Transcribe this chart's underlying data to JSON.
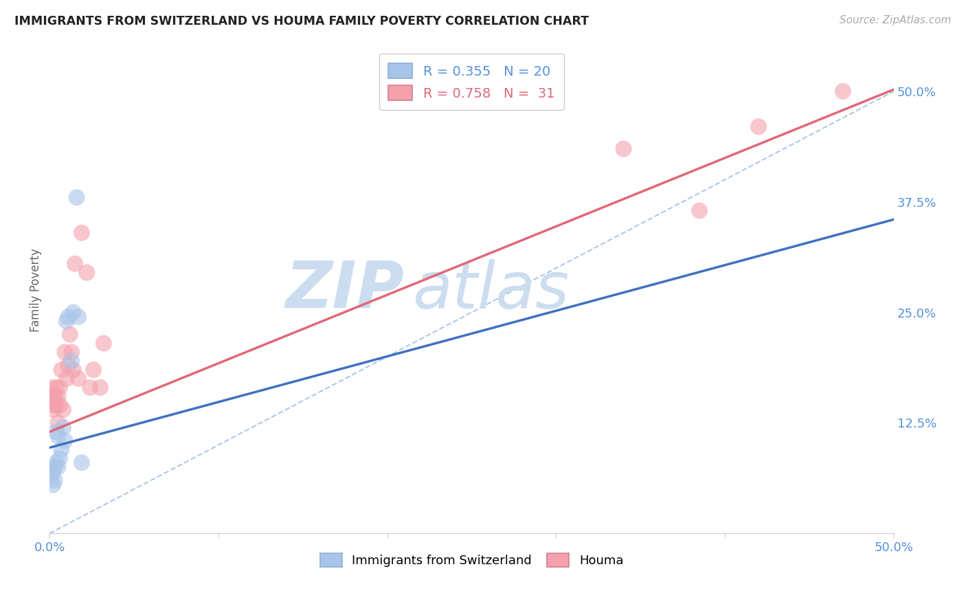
{
  "title": "IMMIGRANTS FROM SWITZERLAND VS HOUMA FAMILY POVERTY CORRELATION CHART",
  "source": "Source: ZipAtlas.com",
  "ylabel": "Family Poverty",
  "right_yticks": [
    "50.0%",
    "37.5%",
    "25.0%",
    "12.5%"
  ],
  "right_ytick_vals": [
    0.5,
    0.375,
    0.25,
    0.125
  ],
  "xlim": [
    0.0,
    0.5
  ],
  "ylim": [
    0.0,
    0.55
  ],
  "blue_label": "Immigrants from Switzerland",
  "pink_label": "Houma",
  "blue_R": "0.355",
  "blue_N": "20",
  "pink_R": "0.758",
  "pink_N": "31",
  "blue_color": "#a8c4e8",
  "pink_color": "#f4a0ad",
  "blue_line_color": "#4070c0",
  "pink_line_color": "#e06878",
  "dashed_line_color": "#b0c8e8",
  "watermark_color": "#ccddf0",
  "blue_scatter_x": [
    0.001,
    0.002,
    0.002,
    0.003,
    0.003,
    0.004,
    0.004,
    0.005,
    0.005,
    0.006,
    0.007,
    0.008,
    0.009,
    0.01,
    0.011,
    0.013,
    0.014,
    0.016,
    0.017,
    0.019
  ],
  "blue_scatter_y": [
    0.065,
    0.07,
    0.055,
    0.075,
    0.06,
    0.08,
    0.115,
    0.075,
    0.11,
    0.085,
    0.095,
    0.12,
    0.105,
    0.24,
    0.245,
    0.195,
    0.25,
    0.38,
    0.245,
    0.08
  ],
  "pink_scatter_x": [
    0.001,
    0.002,
    0.002,
    0.003,
    0.003,
    0.004,
    0.004,
    0.005,
    0.005,
    0.006,
    0.006,
    0.007,
    0.008,
    0.009,
    0.01,
    0.011,
    0.012,
    0.013,
    0.014,
    0.015,
    0.017,
    0.019,
    0.022,
    0.024,
    0.026,
    0.03,
    0.032,
    0.34,
    0.385,
    0.42,
    0.47
  ],
  "pink_scatter_y": [
    0.165,
    0.14,
    0.155,
    0.145,
    0.155,
    0.165,
    0.145,
    0.155,
    0.125,
    0.145,
    0.165,
    0.185,
    0.14,
    0.205,
    0.175,
    0.19,
    0.225,
    0.205,
    0.185,
    0.305,
    0.175,
    0.34,
    0.295,
    0.165,
    0.185,
    0.165,
    0.215,
    0.435,
    0.365,
    0.46,
    0.5
  ],
  "blue_line_x0": 0.0,
  "blue_line_y0": 0.097,
  "blue_line_x1": 0.5,
  "blue_line_y1": 0.355,
  "pink_line_x0": 0.0,
  "pink_line_y0": 0.115,
  "pink_line_x1": 0.5,
  "pink_line_y1": 0.502,
  "dash_line_x0": 0.0,
  "dash_line_y0": 0.0,
  "dash_line_x1": 0.5,
  "dash_line_y1": 0.5,
  "background_color": "#ffffff",
  "grid_color": "#dddddd"
}
